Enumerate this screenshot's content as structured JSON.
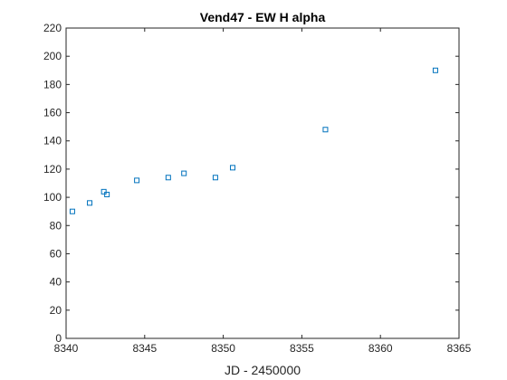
{
  "chart_data": {
    "type": "scatter",
    "title": "Vend47 - EW H alpha",
    "xlabel": "JD - 2450000",
    "ylabel": "",
    "xlim": [
      8340,
      8365
    ],
    "ylim": [
      0,
      220
    ],
    "xticks": [
      8340,
      8345,
      8350,
      8355,
      8360,
      8365
    ],
    "yticks": [
      0,
      20,
      40,
      60,
      80,
      100,
      120,
      140,
      160,
      180,
      200,
      220
    ],
    "grid": false,
    "marker": "square",
    "color": "#0072BD",
    "series": [
      {
        "x": [
          8340.4,
          8341.5,
          8342.4,
          8342.6,
          8344.5,
          8346.5,
          8347.5,
          8349.5,
          8350.6,
          8356.5,
          8363.5
        ],
        "y": [
          90,
          96,
          104,
          102,
          112,
          114,
          117,
          114,
          121,
          148,
          190
        ]
      }
    ]
  }
}
